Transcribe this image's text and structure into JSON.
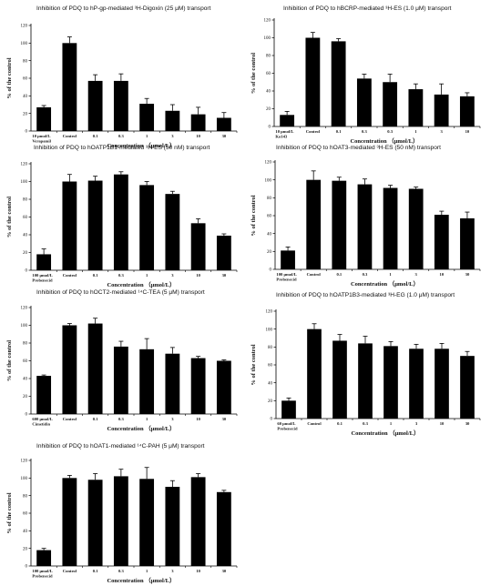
{
  "chart_data": [
    {
      "type": "bar",
      "title": "Inhibition of PDQ to hP-gp-mediated ³H-Digoxin (25 μM) transport",
      "ylabel": "% of the control",
      "xlabel": "Concentration （μmol/L）",
      "categories": [
        [
          "10 μmol/L",
          "Verapamil"
        ],
        [
          "Control"
        ],
        [
          "0.1"
        ],
        [
          "0.3"
        ],
        [
          "1"
        ],
        [
          "3"
        ],
        [
          "10"
        ],
        [
          "30"
        ]
      ],
      "values": [
        27,
        100,
        57,
        57,
        31,
        23,
        19,
        15
      ],
      "errors": [
        2,
        7,
        7,
        8,
        6,
        7,
        8,
        6
      ],
      "yticks": [
        0,
        20,
        40,
        60,
        80,
        100,
        120
      ],
      "ylim": [
        0,
        120
      ]
    },
    {
      "type": "bar",
      "title": "Inhibition of PDQ to hBCRP-mediated ³H-ES (1.0 μM) transport",
      "ylabel": "% of the control",
      "xlabel": "Concentration （μmol/L）",
      "categories": [
        [
          "10 μmol/L",
          "Ko143"
        ],
        [
          "Control"
        ],
        [
          "0.1"
        ],
        [
          "0.3"
        ],
        [
          "0.3"
        ],
        [
          "1"
        ],
        [
          "3"
        ],
        [
          "10"
        ]
      ],
      "values": [
        13,
        100,
        96,
        54,
        50,
        42,
        36,
        34
      ],
      "errors": [
        4,
        6,
        3,
        5,
        9,
        6,
        12,
        4
      ],
      "yticks": [
        0,
        20,
        40,
        60,
        80,
        100,
        120
      ],
      "ylim": [
        0,
        120
      ]
    },
    {
      "type": "bar",
      "title": "Inhibition of PDQ to hOATP1B1-mediated ³H-ES (50 nM) transport",
      "ylabel": "% of the control",
      "xlabel": "Concentration （μmol/L）",
      "categories": [
        [
          "100 μmol/L",
          "Probenecid"
        ],
        [
          "Control"
        ],
        [
          "0.1"
        ],
        [
          "0.3"
        ],
        [
          "1"
        ],
        [
          "3"
        ],
        [
          "10"
        ],
        [
          "30"
        ]
      ],
      "values": [
        18,
        100,
        101,
        108,
        96,
        86,
        53,
        39
      ],
      "errors": [
        6,
        8,
        5,
        3,
        4,
        3,
        5,
        2
      ],
      "yticks": [
        0,
        20,
        40,
        60,
        80,
        100,
        120
      ],
      "ylim": [
        0,
        120
      ]
    },
    {
      "type": "bar",
      "title": "Inhibition of PDQ to hOAT3-mediated ³H-ES (50 nM) transport",
      "ylabel": "% of the control",
      "xlabel": "Concentration （μmol/L）",
      "categories": [
        [
          "100 μmol/L",
          "Probenecid"
        ],
        [
          "Control"
        ],
        [
          "0.1"
        ],
        [
          "0.3"
        ],
        [
          "1"
        ],
        [
          "3"
        ],
        [
          "10"
        ],
        [
          "30"
        ]
      ],
      "values": [
        21,
        100,
        99,
        95,
        91,
        90,
        61,
        57
      ],
      "errors": [
        4,
        10,
        4,
        6,
        3,
        2,
        4,
        7
      ],
      "yticks": [
        0,
        20,
        40,
        60,
        80,
        100,
        120
      ],
      "ylim": [
        0,
        120
      ]
    },
    {
      "type": "bar",
      "title": "Inhibition of PDQ to hOCT2-mediated ¹⁴C-TEA (5 μM) transport",
      "ylabel": "% of the control",
      "xlabel": "Concentration （μmol/L）",
      "categories": [
        [
          "600 μmol/L",
          "Cimetidin"
        ],
        [
          "Control"
        ],
        [
          "0.1"
        ],
        [
          "0.3"
        ],
        [
          "1"
        ],
        [
          "3"
        ],
        [
          "10"
        ],
        [
          "30"
        ]
      ],
      "values": [
        43,
        100,
        102,
        76,
        73,
        68,
        63,
        60
      ],
      "errors": [
        1,
        2,
        6,
        6,
        12,
        7,
        2,
        1
      ],
      "yticks": [
        0,
        20,
        40,
        60,
        80,
        100,
        120
      ],
      "ylim": [
        0,
        120
      ]
    },
    {
      "type": "bar",
      "title": "Inhibition of PDQ to hOATP1B3-mediated ³H-EG (1.0 μM) transport",
      "ylabel": "% of the control",
      "xlabel": "Concentration （μmol/L）",
      "categories": [
        [
          "60 μmol/L",
          "Probenecid"
        ],
        [
          "Control"
        ],
        [
          "0.1"
        ],
        [
          "0.3"
        ],
        [
          "1"
        ],
        [
          "3"
        ],
        [
          "10"
        ],
        [
          "30"
        ]
      ],
      "values": [
        20,
        100,
        87,
        84,
        81,
        78,
        78,
        70
      ],
      "errors": [
        3,
        6,
        7,
        8,
        5,
        5,
        6,
        5
      ],
      "yticks": [
        0,
        20,
        40,
        60,
        80,
        100,
        120
      ],
      "ylim": [
        0,
        120
      ]
    },
    {
      "type": "bar",
      "title": "Inhibition of PDQ to hOAT1-mediated ¹⁴C-PAH (5 μM) transport",
      "ylabel": "% of the control",
      "xlabel": "Concentration （μmol/L）",
      "categories": [
        [
          "100 μmol/L",
          "Probenecid"
        ],
        [
          "Control"
        ],
        [
          "0.1"
        ],
        [
          "0.3"
        ],
        [
          "1"
        ],
        [
          "3"
        ],
        [
          "10"
        ],
        [
          "30"
        ]
      ],
      "values": [
        18,
        100,
        98,
        102,
        99,
        90,
        101,
        84
      ],
      "errors": [
        2,
        3,
        7,
        8,
        13,
        7,
        4,
        2
      ],
      "yticks": [
        0,
        20,
        40,
        60,
        80,
        100,
        120
      ],
      "ylim": [
        0,
        120
      ]
    }
  ]
}
